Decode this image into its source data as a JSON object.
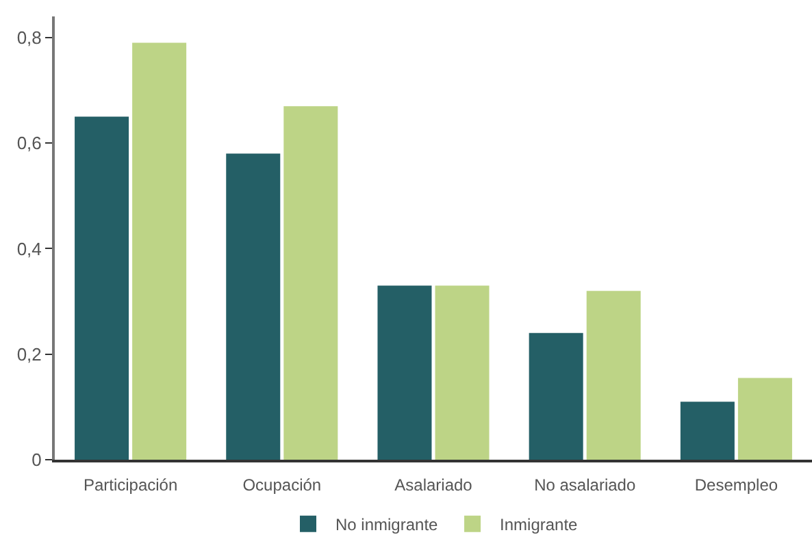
{
  "chart_data": {
    "type": "bar",
    "categories": [
      "Participación",
      "Ocupación",
      "Asalariado",
      "No asalariado",
      "Desempleo"
    ],
    "series": [
      {
        "name": "No inmigrante",
        "color": "#245f66",
        "values": [
          0.65,
          0.58,
          0.33,
          0.24,
          0.11
        ]
      },
      {
        "name": "Inmigrante",
        "color": "#bdd486",
        "values": [
          0.79,
          0.67,
          0.33,
          0.32,
          0.155
        ]
      }
    ],
    "ylim": [
      0,
      0.84
    ],
    "yticks": [
      0,
      {
        "value": 0.2,
        "label": "0,2"
      },
      {
        "value": 0.4,
        "label": "0,4"
      },
      {
        "value": 0.6,
        "label": "0,6"
      },
      {
        "value": 0.8,
        "label": "0,8"
      }
    ],
    "legend": "bottom"
  }
}
